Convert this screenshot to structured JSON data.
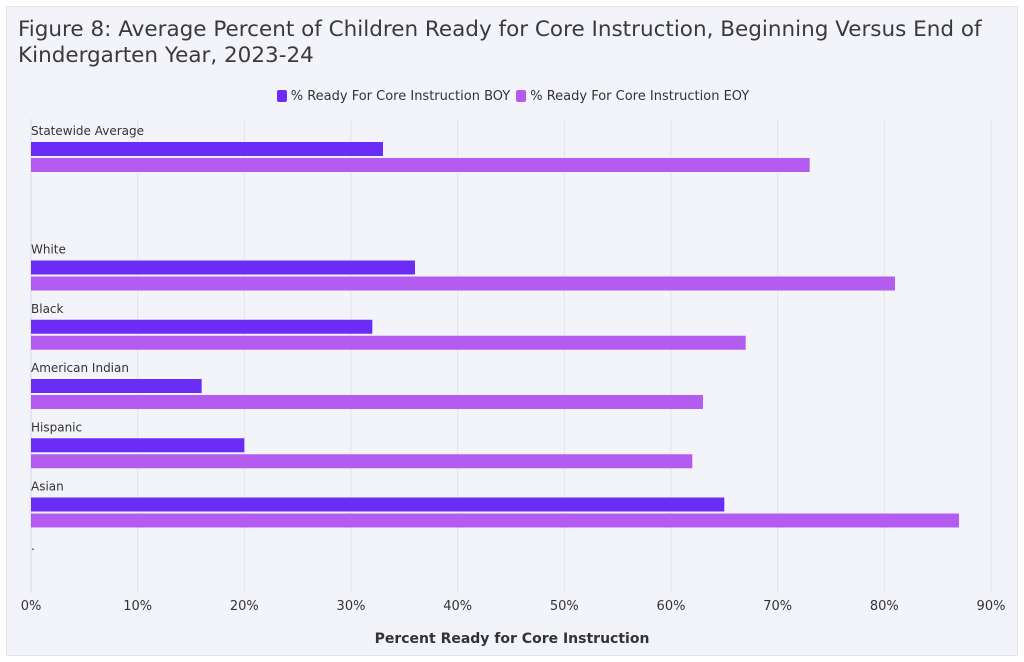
{
  "chart_data": {
    "type": "bar",
    "orientation": "horizontal",
    "title": "Figure 8: Average Percent of Children Ready for Core Instruction, Beginning Versus End of Kindergarten Year, 2023-24",
    "xlabel": "Percent Ready for Core Instruction",
    "ylabel": "",
    "xlim": [
      0,
      90
    ],
    "ticks": [
      "0%",
      "10%",
      "20%",
      "30%",
      "40%",
      "50%",
      "60%",
      "70%",
      "80%",
      "90%"
    ],
    "grid": true,
    "legend_position": "top-center",
    "categories": [
      "Statewide Average",
      "",
      "White",
      "Black",
      "American Indian",
      "Hispanic",
      "Asian",
      "."
    ],
    "series": [
      {
        "name": "% Ready For Core Instruction BOY",
        "color": "#6b2cf5",
        "values": [
          33,
          null,
          36,
          32,
          16,
          20,
          65,
          null
        ]
      },
      {
        "name": "% Ready For Core Instruction EOY",
        "color": "#b45cf0",
        "values": [
          73,
          null,
          81,
          67,
          63,
          62,
          87,
          null
        ]
      }
    ]
  }
}
